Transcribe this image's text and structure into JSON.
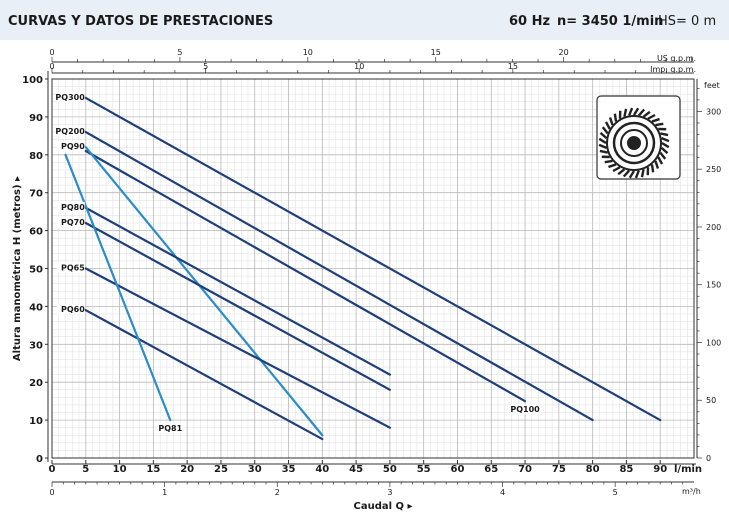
{
  "header": {
    "title": "CURVAS Y DATOS DE PRESTACIONES",
    "frequency": "60 Hz",
    "speed": "n= 3450  1/min",
    "hs": "HS= 0 m"
  },
  "chart_data": {
    "type": "line",
    "title": "CURVAS Y DATOS DE PRESTACIONES",
    "xlabel": "Caudal Q",
    "ylabel": "Altura manométrica H (metros)",
    "x_unit": "l/min",
    "xlim": [
      0,
      95
    ],
    "ylim": [
      0,
      100
    ],
    "x_ticks": [
      0,
      5,
      10,
      15,
      20,
      25,
      30,
      35,
      40,
      45,
      50,
      55,
      60,
      65,
      70,
      75,
      80,
      85,
      90
    ],
    "y_ticks": [
      0,
      10,
      20,
      30,
      40,
      50,
      60,
      70,
      80,
      90,
      100
    ],
    "secondary_axes": {
      "us_gpm": {
        "label": "US g.p.m.",
        "ticks": [
          0,
          5,
          10,
          15,
          20
        ]
      },
      "imp_gpm": {
        "label": "Imp. g.p.m.",
        "ticks": [
          0,
          5,
          10,
          15
        ]
      },
      "m3h": {
        "label": "m³/h",
        "ticks": [
          0,
          1,
          2,
          3,
          4,
          5
        ]
      },
      "feet": {
        "label": "feet",
        "ticks": [
          0,
          50,
          100,
          150,
          200,
          250,
          300
        ]
      }
    },
    "grid": true,
    "series": [
      {
        "name": "PQ300",
        "x": [
          5,
          90
        ],
        "y": [
          95,
          10
        ],
        "color": "#1f3f7a",
        "label_at": "start"
      },
      {
        "name": "PQ200",
        "x": [
          5,
          80
        ],
        "y": [
          86,
          10
        ],
        "color": "#1f3f7a",
        "label_at": "start"
      },
      {
        "name": "PQ100",
        "x": [
          5,
          70
        ],
        "y": [
          81,
          15
        ],
        "color": "#1f3f7a",
        "label_at": "end"
      },
      {
        "name": "PQ90",
        "x": [
          5,
          40
        ],
        "y": [
          82,
          6
        ],
        "color": "#2b8ccc",
        "label_at": "start"
      },
      {
        "name": "PQ80",
        "x": [
          5,
          50
        ],
        "y": [
          66,
          22
        ],
        "color": "#1f3f7a",
        "label_at": "start"
      },
      {
        "name": "PQ70",
        "x": [
          5,
          50
        ],
        "y": [
          62,
          18
        ],
        "color": "#1f3f7a",
        "label_at": "start"
      },
      {
        "name": "PQ65",
        "x": [
          5,
          50
        ],
        "y": [
          50,
          8
        ],
        "color": "#1f3f7a",
        "label_at": "start"
      },
      {
        "name": "PQ60",
        "x": [
          5,
          40
        ],
        "y": [
          39,
          5
        ],
        "color": "#1f3f7a",
        "label_at": "start"
      },
      {
        "name": "PQ81",
        "x": [
          2,
          17.5
        ],
        "y": [
          80,
          10
        ],
        "color": "#2b8ccc",
        "label_at": "end"
      }
    ]
  }
}
